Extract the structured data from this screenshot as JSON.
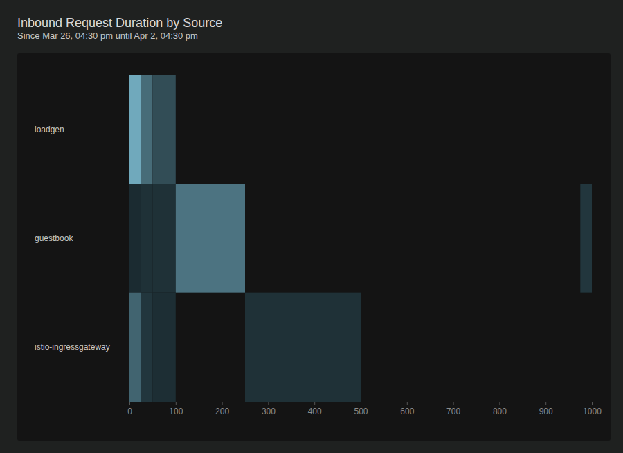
{
  "chart_data": {
    "type": "heatmap",
    "title": "Inbound Request Duration by Source",
    "subtitle": "Since Mar 26, 04:30 pm until Apr 2, 04:30 pm",
    "categories": [
      "loadgen",
      "guestbook",
      "istio-ingressgateway"
    ],
    "bins": [
      0,
      25,
      50,
      100,
      250,
      500,
      975,
      1000
    ],
    "cells": [
      [
        0.9,
        0.5,
        0.3,
        null,
        null,
        null,
        null
      ],
      [
        0.08,
        0.12,
        0.12,
        0.55,
        null,
        null,
        0.15
      ],
      [
        0.45,
        0.15,
        0.1,
        null,
        0.12,
        null,
        null
      ]
    ],
    "zlim": [
      0,
      1
    ],
    "xlim": [
      0,
      1000
    ],
    "xticks": [
      0,
      100,
      200,
      300,
      400,
      500,
      600,
      700,
      800,
      900,
      1000
    ]
  }
}
